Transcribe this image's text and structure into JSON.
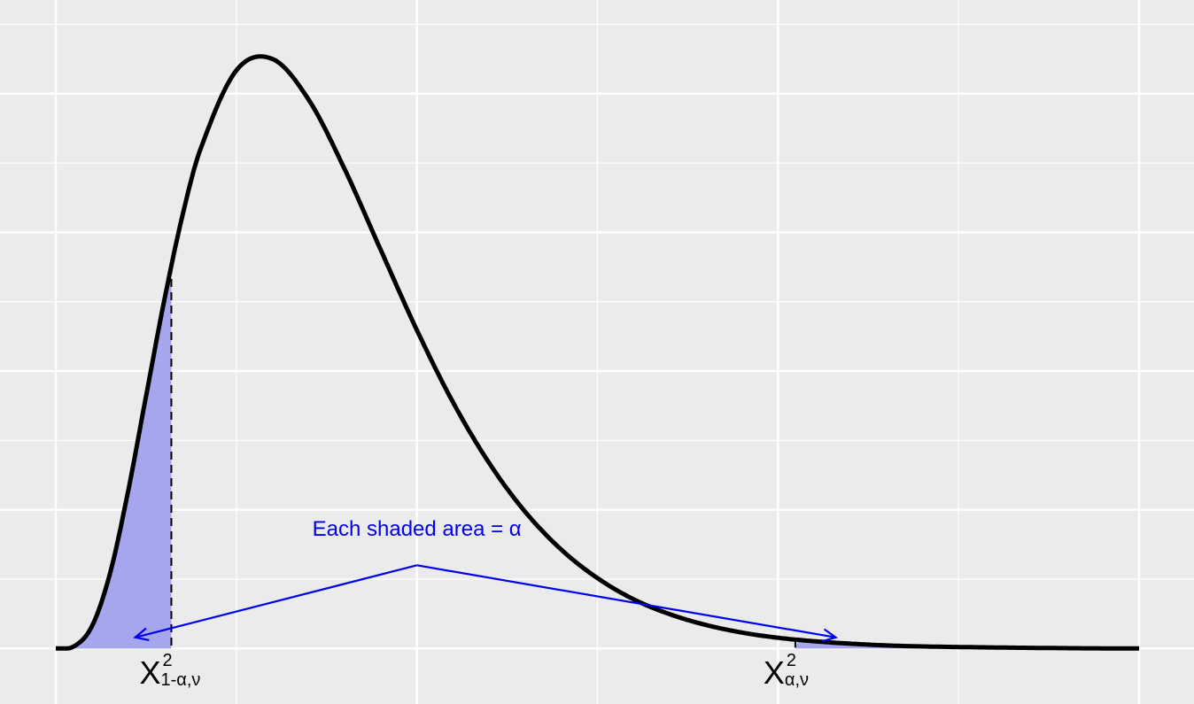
{
  "chart_data": {
    "type": "area",
    "title": "",
    "xlabel": "",
    "ylabel": "",
    "distribution": "chi-square density",
    "series": [
      {
        "x": [
          0,
          0.25,
          0.5,
          0.75,
          1,
          1.25,
          1.5,
          1.75,
          2,
          2.5,
          3,
          3.5,
          4,
          4.5,
          5,
          5.5,
          6,
          6.5,
          7,
          7.5,
          8,
          8.5,
          9,
          9.5,
          10,
          10.5,
          11,
          11.5,
          12,
          13,
          14,
          15
        ],
        "y": [
          0,
          0.0006,
          0.0064,
          0.0216,
          0.0452,
          0.0728,
          0.1002,
          0.1245,
          0.1438,
          0.1667,
          0.17,
          0.1583,
          0.1382,
          0.1149,
          0.0918,
          0.071,
          0.0535,
          0.0394,
          0.0285,
          0.0203,
          0.0142,
          0.0099,
          0.0068,
          0.0046,
          0.0031,
          0.0021,
          0.0014,
          0.0009,
          0.0006,
          0.0003,
          0.0001,
          0.0
        ]
      }
    ],
    "xlim": [
      0,
      15
    ],
    "ylim": [
      -0.016,
      0.187
    ],
    "shaded_regions": [
      {
        "from": 0,
        "to": 1.6
      },
      {
        "from": 10.24,
        "to": 15
      }
    ],
    "critical_values": [
      {
        "x": 1.6,
        "base": "X",
        "sup": "2",
        "sub": "1-α,ν"
      },
      {
        "x": 10.24,
        "base": "X",
        "sup": "2",
        "sub": "α,ν"
      }
    ],
    "annotation": {
      "text": "Each shaded area = α",
      "text_x": 5.0,
      "text_y": 0.0325,
      "apex": [
        5.0,
        0.024
      ],
      "arrow_targets": [
        [
          1.1,
          0.0032
        ],
        [
          10.8,
          0.0032
        ]
      ]
    },
    "grid": true,
    "colors": {
      "background": "#ebebeb",
      "grid": "#ffffff",
      "curve": "#000000",
      "shade": "#a6a6ee",
      "annotation": "#0000ee"
    }
  }
}
